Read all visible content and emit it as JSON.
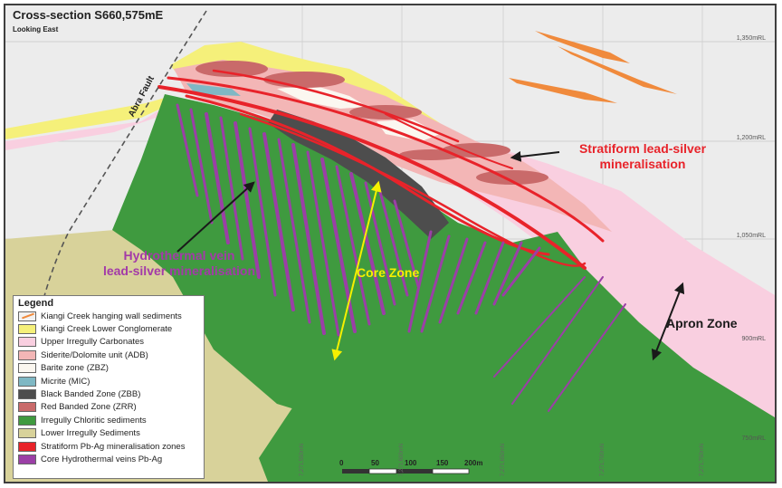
{
  "header": {
    "title": "Cross-section S660,575mE",
    "subtitle": "Looking East"
  },
  "rl_labels": [
    "1,350mRL",
    "1,200mRL",
    "1,050mRL",
    "900mRL",
    "750mRL"
  ],
  "northing_labels": [
    "7,271,550mN",
    "7,271,600mN",
    "7,271,650mN",
    "7,271,700mN",
    "7,271,750mN"
  ],
  "annotations": {
    "abra_fault": "Abra Fault",
    "stratiform_line1": "Stratiform lead-silver",
    "stratiform_line2": "mineralisation",
    "hydro_line1": "Hydrothermal vein",
    "hydro_line2": "lead-silver mineralisation",
    "core_zone": "Core Zone",
    "apron_zone": "Apron Zone"
  },
  "scale_bar": {
    "ticks": [
      "0",
      "50",
      "100",
      "150",
      "200m"
    ]
  },
  "legend": {
    "title": "Legend",
    "items": [
      {
        "label": "Kiangi Creek hanging wall sediments",
        "color": "#f2f2f2",
        "accent": "#f08a3c"
      },
      {
        "label": "Kiangi Creek Lower Conglomerate",
        "color": "#f5f07a"
      },
      {
        "label": "Upper Irregully Carbonates",
        "color": "#f9cfe0"
      },
      {
        "label": "Siderite/Dolomite unit (ADB)",
        "color": "#f3b6b6"
      },
      {
        "label": "Barite zone (ZBZ)",
        "color": "#fbf7f0"
      },
      {
        "label": "Micrite (MIC)",
        "color": "#7fb8c4"
      },
      {
        "label": "Black Banded Zone (ZBB)",
        "color": "#4d4d4d"
      },
      {
        "label": "Red Banded Zone (ZRR)",
        "color": "#c96a6a"
      },
      {
        "label": "Irregully Chloritic sediments",
        "color": "#3f9a3f"
      },
      {
        "label": "Lower Irregully Sediments",
        "color": "#d8d29a"
      },
      {
        "label": "Stratiform Pb-Ag mineralisation zones",
        "color": "#e8232a"
      },
      {
        "label": "Core Hydrothermal veins Pb-Ag",
        "color": "#9b3fa6"
      }
    ]
  },
  "colors": {
    "stratiform_text": "#e8232a",
    "hydro_text": "#a33aa8",
    "core_zone_text": "#f6f000",
    "apron_zone_text": "#1a1a1a"
  }
}
